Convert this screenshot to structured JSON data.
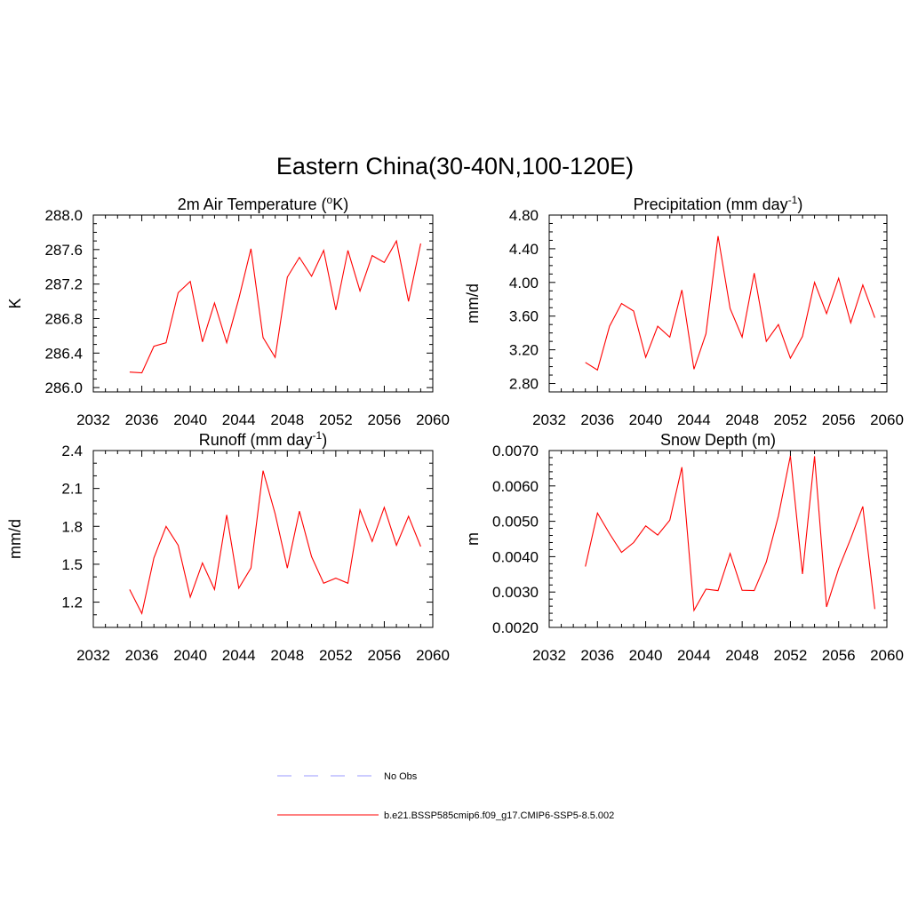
{
  "title": "Eastern China(30-40N,100-120E)",
  "legend": [
    {
      "label": "No Obs",
      "color": "#9999ff",
      "dash": true
    },
    {
      "label": "b.e21.BSSP585cmip6.f09_g17.CMIP6-SSP5-8.5.002",
      "color": "#ff0000",
      "dash": false
    }
  ],
  "chart_data": [
    {
      "type": "line",
      "title": "2m Air Temperature (",
      "title_sup": "o",
      "title_end": "K)",
      "ylabel": "K",
      "xlim": [
        2032,
        2060
      ],
      "ylim": [
        285.95,
        288.0
      ],
      "xticks": [
        "2032",
        "2036",
        "2040",
        "2044",
        "2048",
        "2052",
        "2056",
        "2060"
      ],
      "yticks": [
        "286.0",
        "286.4",
        "286.8",
        "287.2",
        "287.6",
        "288.0"
      ],
      "ytick_values": [
        286.0,
        286.4,
        286.8,
        287.2,
        287.6,
        288.0
      ],
      "y_minor_step": 0.1,
      "x": [
        2035,
        2036,
        2037,
        2038,
        2039,
        2040,
        2041,
        2042,
        2043,
        2044,
        2045,
        2046,
        2047,
        2048,
        2049,
        2050,
        2051,
        2052,
        2053,
        2054,
        2055,
        2056,
        2057,
        2058,
        2059
      ],
      "series": [
        {
          "values": [
            286.18,
            286.17,
            286.48,
            286.52,
            287.1,
            287.23,
            286.53,
            286.98,
            286.52,
            287.03,
            287.61,
            286.58,
            286.35,
            287.28,
            287.51,
            287.29,
            287.59,
            286.9,
            287.59,
            287.12,
            287.53,
            287.45,
            287.7,
            287.0,
            287.67
          ]
        }
      ]
    },
    {
      "type": "line",
      "title": "Precipitation (mm day",
      "title_sup": "-1",
      "title_end": ")",
      "ylabel": "mm/d",
      "xlim": [
        2032,
        2060
      ],
      "ylim": [
        2.7,
        4.8
      ],
      "xticks": [
        "2032",
        "2036",
        "2040",
        "2044",
        "2048",
        "2052",
        "2056",
        "2060"
      ],
      "yticks": [
        "2.80",
        "3.20",
        "3.60",
        "4.00",
        "4.40",
        "4.80"
      ],
      "ytick_values": [
        2.8,
        3.2,
        3.6,
        4.0,
        4.4,
        4.8
      ],
      "y_minor_step": 0.1,
      "x": [
        2035,
        2036,
        2037,
        2038,
        2039,
        2040,
        2041,
        2042,
        2043,
        2044,
        2045,
        2046,
        2047,
        2048,
        2049,
        2050,
        2051,
        2052,
        2053,
        2054,
        2055,
        2056,
        2057,
        2058,
        2059
      ],
      "series": [
        {
          "values": [
            3.05,
            2.96,
            3.48,
            3.75,
            3.66,
            3.11,
            3.48,
            3.35,
            3.91,
            2.97,
            3.39,
            4.55,
            3.69,
            3.35,
            4.11,
            3.3,
            3.5,
            3.1,
            3.36,
            4.0,
            3.63,
            4.05,
            3.52,
            3.97,
            3.58
          ]
        }
      ]
    },
    {
      "type": "line",
      "title": "Runoff (mm day",
      "title_sup": "-1",
      "title_end": ")",
      "ylabel": "mm/d",
      "xlim": [
        2032,
        2060
      ],
      "ylim": [
        1.0,
        2.4
      ],
      "xticks": [
        "2032",
        "2036",
        "2040",
        "2044",
        "2048",
        "2052",
        "2056",
        "2060"
      ],
      "yticks": [
        "1.2",
        "1.5",
        "1.8",
        "2.1",
        "2.4"
      ],
      "ytick_values": [
        1.2,
        1.5,
        1.8,
        2.1,
        2.4
      ],
      "y_minor_step": 0.1,
      "x": [
        2035,
        2036,
        2037,
        2038,
        2039,
        2040,
        2041,
        2042,
        2043,
        2044,
        2045,
        2046,
        2047,
        2048,
        2049,
        2050,
        2051,
        2052,
        2053,
        2054,
        2055,
        2056,
        2057,
        2058,
        2059
      ],
      "series": [
        {
          "values": [
            1.3,
            1.11,
            1.55,
            1.8,
            1.65,
            1.24,
            1.51,
            1.3,
            1.89,
            1.31,
            1.47,
            2.24,
            1.9,
            1.47,
            1.92,
            1.56,
            1.35,
            1.39,
            1.35,
            1.93,
            1.68,
            1.95,
            1.65,
            1.88,
            1.64
          ]
        }
      ]
    },
    {
      "type": "line",
      "title": "Snow Depth (m)",
      "title_sup": "",
      "title_end": "",
      "ylabel": "m",
      "xlim": [
        2032,
        2060
      ],
      "ylim": [
        0.002,
        0.007
      ],
      "xticks": [
        "2032",
        "2036",
        "2040",
        "2044",
        "2048",
        "2052",
        "2056",
        "2060"
      ],
      "yticks": [
        "0.0020",
        "0.0030",
        "0.0040",
        "0.0050",
        "0.0060",
        "0.0070"
      ],
      "ytick_values": [
        0.002,
        0.003,
        0.004,
        0.005,
        0.006,
        0.007
      ],
      "y_minor_step": 0.0002,
      "x": [
        2035,
        2036,
        2037,
        2038,
        2039,
        2040,
        2041,
        2042,
        2043,
        2044,
        2045,
        2046,
        2047,
        2048,
        2049,
        2050,
        2051,
        2052,
        2053,
        2054,
        2055,
        2056,
        2057,
        2058,
        2059
      ],
      "series": [
        {
          "values": [
            0.00372,
            0.00523,
            0.00465,
            0.00412,
            0.0044,
            0.00487,
            0.00461,
            0.00503,
            0.00653,
            0.00248,
            0.00308,
            0.00304,
            0.00409,
            0.00305,
            0.00304,
            0.00385,
            0.00515,
            0.00685,
            0.00351,
            0.00684,
            0.00258,
            0.00366,
            0.00451,
            0.00542,
            0.00252
          ]
        }
      ]
    }
  ]
}
